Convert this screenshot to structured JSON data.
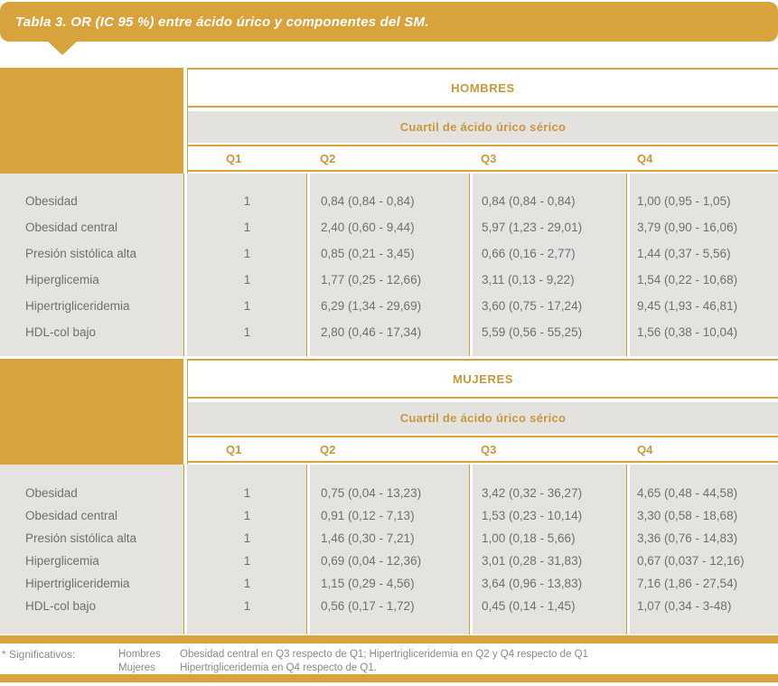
{
  "title": "Tabla 3. OR (IC 95 %) entre ácido úrico y componentes del SM.",
  "colors": {
    "orange": "#D8A23C",
    "orange_text": "#C9973B",
    "band_gray": "#E4E2DF",
    "data_gray": "#E5E3E0",
    "text_gray": "#6F6F72",
    "footnote_gray": "#8A8A8C"
  },
  "sections": [
    {
      "group_label": "HOMBRES",
      "subheader": "Cuartil de ácido úrico sérico",
      "quartiles": [
        "Q1",
        "Q2",
        "Q3",
        "Q4"
      ],
      "rows": [
        {
          "label": "Obesidad",
          "q1": "1",
          "q2": "0,84 (0,84 - 0,84)",
          "q3": "0,84 (0,84 - 0,84)",
          "q4": "1,00 (0,95 - 1,05)"
        },
        {
          "label": "Obesidad central",
          "q1": "1",
          "q2": "2,40 (0,60 - 9,44)",
          "q3": "5,97 (1,23 - 29,01)",
          "q4": "3,79 (0,90 - 16,06)"
        },
        {
          "label": "Presión sistólica alta",
          "q1": "1",
          "q2": "0,85 (0,21 - 3,45)",
          "q3": "0,66 (0,16 - 2,77)",
          "q4": "1,44 (0,37 - 5,56)"
        },
        {
          "label": "Hiperglicemia",
          "q1": "1",
          "q2": "1,77 (0,25 - 12,66)",
          "q3": "3,11 (0,13 - 9,22)",
          "q4": "1,54 (0,22 - 10,68)"
        },
        {
          "label": "Hipertrigliceridemia",
          "q1": "1",
          "q2": "6,29 (1,34 - 29,69)",
          "q3": "3,60 (0,75 - 17,24)",
          "q4": "9,45 (1,93 - 46,81)"
        },
        {
          "label": "HDL-col bajo",
          "q1": "1",
          "q2": "2,80 (0,46 - 17,34)",
          "q3": "5,59 (0,56 - 55,25)",
          "q4": "1,56 (0,38 - 10,04)"
        }
      ]
    },
    {
      "group_label": "MUJERES",
      "subheader": "Cuartil de ácido úrico sérico",
      "quartiles": [
        "Q1",
        "Q2",
        "Q3",
        "Q4"
      ],
      "rows": [
        {
          "label": "Obesidad",
          "q1": "1",
          "q2": "0,75 (0,04 - 13,23)",
          "q3": "3,42 (0,32 - 36,27)",
          "q4": "4,65 (0,48 - 44,58)"
        },
        {
          "label": "Obesidad central",
          "q1": "1",
          "q2": "0,91 (0,12 - 7,13)",
          "q3": "1,53 (0,23 - 10,14)",
          "q4": "3,30 (0,58 - 18,68)"
        },
        {
          "label": "Presión sistólica alta",
          "q1": "1",
          "q2": "1,46 (0,30 - 7,21)",
          "q3": "1,00 (0,18 - 5,66)",
          "q4": "3,36 (0,76 - 14,83)"
        },
        {
          "label": "Hiperglicemia",
          "q1": "1",
          "q2": "0,69 (0,04 - 12,36)",
          "q3": "3,01 (0,28 - 31,83)",
          "q4": "0,67 (0,037 - 12,16)"
        },
        {
          "label": "Hipertrigliceridemia",
          "q1": "1",
          "q2": "1,15 (0,29 - 4,56)",
          "q3": "3,64 (0,96 - 13,83)",
          "q4": "7,16 (1,86 - 27,54)"
        },
        {
          "label": "HDL-col bajo",
          "q1": "1",
          "q2": "0,56 (0,17 - 1,72)",
          "q3": "0,45 (0,14 - 1,45)",
          "q4": "1,07 (0,34 - 3-48)"
        }
      ]
    }
  ],
  "footnote": {
    "label": "* Significativos:",
    "entries": [
      {
        "group": "Hombres",
        "text": "Obesidad central en Q3 respecto de Q1; Hipertrigliceridemia en Q2 y Q4 respecto de Q1"
      },
      {
        "group": "Mujeres",
        "text": "Hipertrigliceridemia en Q4 respecto de Q1."
      }
    ]
  }
}
